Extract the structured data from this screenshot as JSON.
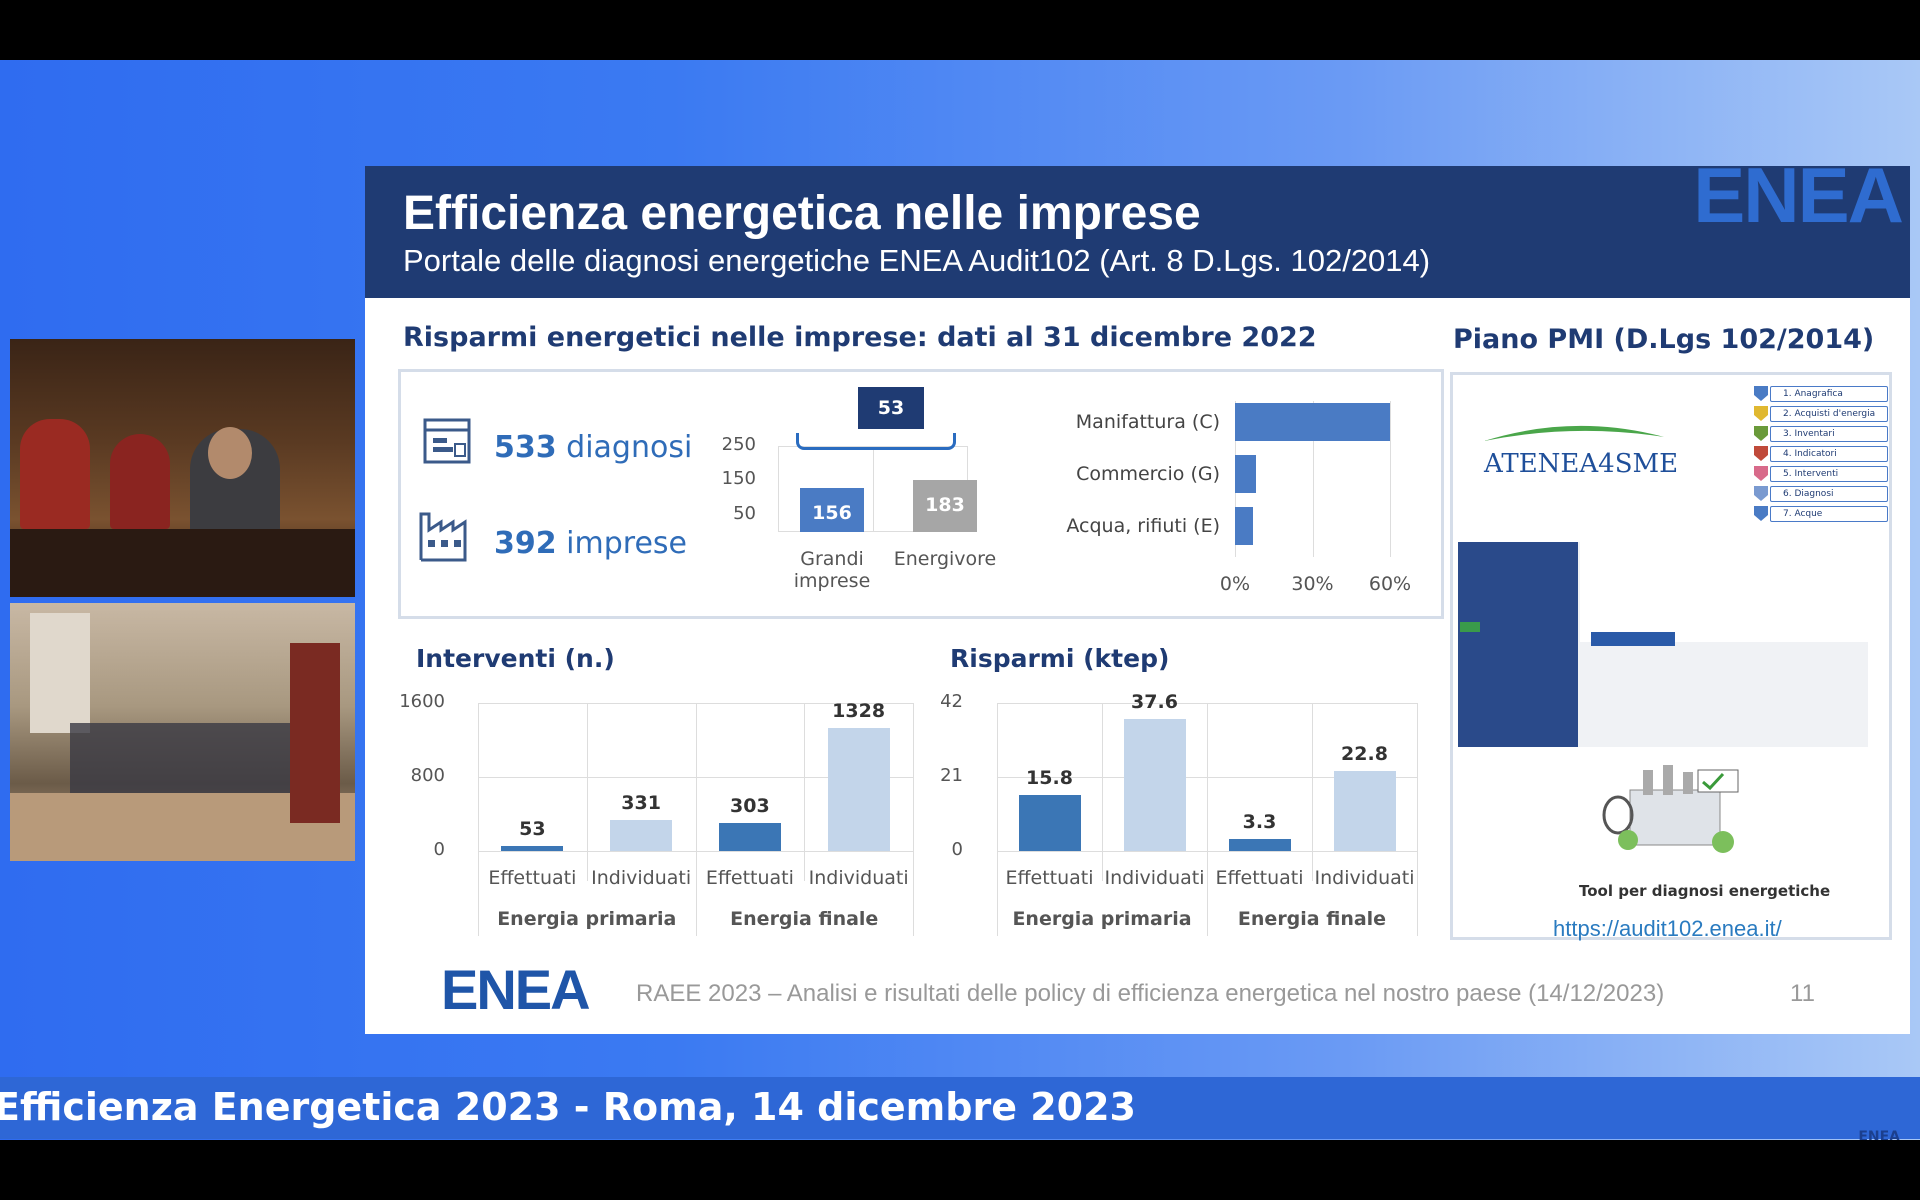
{
  "ticker": {
    "text": "Efficienza Energetica 2023 - Roma, 14 dicembre 2023",
    "logo": "ENEA"
  },
  "slide": {
    "title": "Efficienza energetica nelle imprese",
    "subtitle": "Portale delle diagnosi energetiche ENEA Audit102 (Art. 8 D.Lgs. 102/2014)",
    "logo": "ENEA",
    "section_left": "Risparmi energetici nelle imprese: dati al 31 dicembre 2022",
    "section_right": "Piano PMI (D.Lgs 102/2014)",
    "kpi": {
      "diagnosi_num": "533",
      "diagnosi_lbl": "diagnosi",
      "imprese_num": "392",
      "imprese_lbl": "imprese"
    },
    "footer_text": "RAEE 2023 – Analisi e risultati delle policy di efficienza energetica nel nostro paese (14/12/2023)",
    "page_number": "11",
    "pmi": {
      "brand": "ATENEA4SME",
      "menu": [
        "1. Anagrafica",
        "2. Acquisti d'energia",
        "3. Inventari",
        "4. Indicatori",
        "5. Interventi",
        "6. Diagnosi",
        "7. Acque"
      ],
      "tool_label": "Tool per diagnosi energetiche",
      "link": "https://audit102.enea.it/"
    }
  },
  "chart_data": [
    {
      "type": "bar",
      "categories": [
        "Grandi imprese",
        "Energivore"
      ],
      "values": [
        156,
        183
      ],
      "yticks": [
        "250",
        "150",
        "50"
      ],
      "ylim": [
        0,
        250
      ],
      "annotation": "53",
      "colors": [
        "#4a7bc4",
        "#a6a6a6"
      ]
    },
    {
      "type": "bar",
      "orientation": "horizontal",
      "categories": [
        "Manifattura (C)",
        "Commercio (G)",
        "Acqua, rifiuti (E)"
      ],
      "values": [
        60,
        8,
        7
      ],
      "xticks": [
        "0%",
        "30%",
        "60%"
      ],
      "xlim": [
        0,
        60
      ]
    },
    {
      "type": "bar",
      "title": "Interventi (n.)",
      "categories": [
        "Effettuati",
        "Individuati",
        "Effettuati",
        "Individuati"
      ],
      "groups": [
        "Energia primaria",
        "Energia finale"
      ],
      "values": [
        53,
        331,
        303,
        1328
      ],
      "yticks": [
        "1600",
        "800",
        "0"
      ],
      "ylim": [
        0,
        1600
      ],
      "colors": [
        "#3b76b5",
        "#c3d5ea",
        "#3b76b5",
        "#c3d5ea"
      ]
    },
    {
      "type": "bar",
      "title": "Risparmi (ktep)",
      "categories": [
        "Effettuati",
        "Individuati",
        "Effettuati",
        "Individuati"
      ],
      "groups": [
        "Energia primaria",
        "Energia finale"
      ],
      "values": [
        15.8,
        37.6,
        3.3,
        22.8
      ],
      "yticks": [
        "42",
        "21",
        "0"
      ],
      "ylim": [
        0,
        42
      ],
      "colors": [
        "#3b76b5",
        "#c3d5ea",
        "#3b76b5",
        "#c3d5ea"
      ]
    }
  ]
}
